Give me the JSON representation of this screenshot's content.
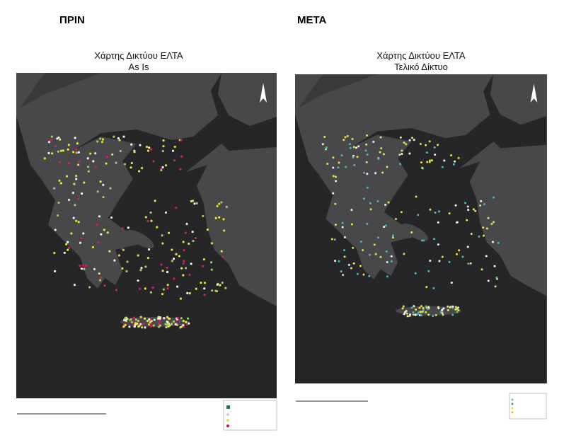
{
  "before": {
    "heading": "ΠΡΙΝ",
    "map_title": "Χάρτης Δικτύου ΕΛΤΑ",
    "map_subtitle": "As Is"
  },
  "after": {
    "heading": "ΜΕΤΑ",
    "map_title": "Χάρτης Δικτύου ΕΛΤΑ",
    "map_subtitle": "Τελικό Δίκτυο"
  }
}
